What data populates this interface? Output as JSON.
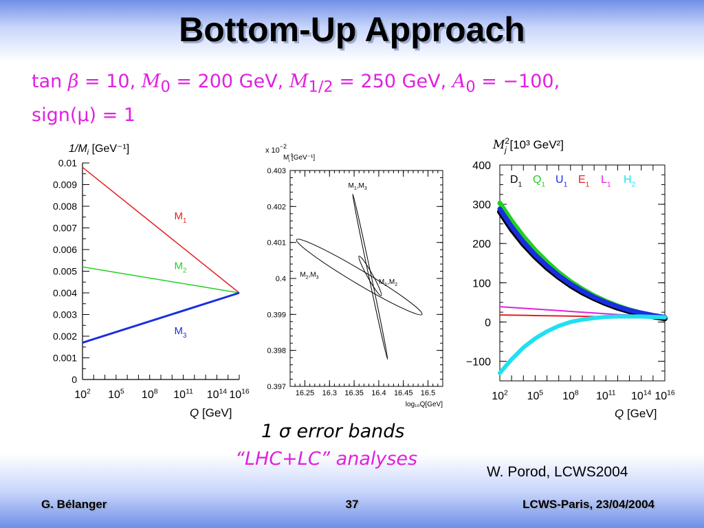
{
  "slide": {
    "title": "Bottom-Up Approach",
    "params": {
      "line1_tan": "tan",
      "line1_beta": "β",
      "line1_tanb": " = 10,",
      "line1_m0sym": "M",
      "line1_m0sub": "0",
      "line1_m0val": " = 200  GeV,",
      "line1_mhsym": "M",
      "line1_mhsub": "1/2",
      "line1_mhval": " = 250  GeV,",
      "line1_a0sym": "A",
      "line1_a0sub": "0",
      "line1_a0val": " = −100,",
      "line2": "sign(μ) = 1"
    },
    "caption_line1": "1 σ  error bands",
    "caption_line2": "“LHC+LC”  analyses",
    "credit": "W. Porod, LCWS2004",
    "footer": {
      "left": "G. Bélanger",
      "center": "37",
      "right": "LCWS-Paris, 23/04/2004"
    }
  },
  "chart_data": [
    {
      "type": "line",
      "ylabel": "1/M",
      "ylabel_sub": "i",
      "ylabel_unit": "[GeV⁻¹]",
      "xlabel": "Q",
      "xlabel_unit": "[GeV]",
      "x_scale": "log",
      "xlim_exp": [
        2,
        16
      ],
      "x_ticks_exp": [
        "2",
        "5",
        "8",
        "11",
        "14",
        "16"
      ],
      "ylim": [
        0,
        0.01
      ],
      "y_ticks": [
        "0.01",
        "0.009",
        "0.008",
        "0.007",
        "0.006",
        "0.005",
        "0.004",
        "0.003",
        "0.002",
        "0.001",
        "0"
      ],
      "series": [
        {
          "name": "M",
          "sub": "1",
          "color": "#e02020",
          "x_exp": [
            2,
            16
          ],
          "y": [
            0.0098,
            0.004
          ],
          "label_x_exp": 10.2,
          "label_y": 0.0074
        },
        {
          "name": "M",
          "sub": "2",
          "color": "#20d020",
          "x_exp": [
            2,
            16
          ],
          "y": [
            0.0052,
            0.004
          ],
          "label_x_exp": 10.2,
          "label_y": 0.0051
        },
        {
          "name": "M",
          "sub": "3",
          "color": "#1a2ee0",
          "x_exp": [
            2,
            16
          ],
          "y": [
            0.0017,
            0.004
          ],
          "label_x_exp": 10.2,
          "label_y": 0.0021
        }
      ]
    },
    {
      "type": "scatter",
      "ylabel": "M",
      "ylabel_sub": "i",
      "ylabel_sup": "-1",
      "ylabel_unit": "[GeV⁻¹]",
      "y_multiplier_base": "x 10",
      "y_multiplier_exp": "−2",
      "xlabel": "log₁₀Q[GeV]",
      "xlim": [
        16.22,
        16.53
      ],
      "x_ticks": [
        "16.25",
        "16.3",
        "16.35",
        "16.4",
        "16.45",
        "16.5"
      ],
      "ylim": [
        0.397,
        0.403
      ],
      "y_ticks": [
        "0.403",
        "0.402",
        "0.401",
        "0.4",
        "0.399",
        "0.398",
        "0.397"
      ],
      "ellipses": [
        {
          "name": "M",
          "a": "1",
          "b": "3",
          "center": [
            16.38,
            0.40025
          ],
          "endpoints": [
            [
              16.347,
              0.40235
            ],
            [
              16.418,
              0.39775
            ]
          ],
          "width": 0.005,
          "label_pos": [
            16.338,
            0.40252
          ]
        },
        {
          "name": "M",
          "a": "2",
          "b": "3",
          "center": [
            16.36,
            0.40005
          ],
          "endpoints": [
            [
              16.233,
              0.40108
            ],
            [
              16.488,
              0.399
            ]
          ],
          "width": 0.028,
          "label_pos": [
            16.24,
            0.40005
          ]
        },
        {
          "name": "M",
          "a": "1",
          "b": "2",
          "center": [
            16.385,
            0.40008
          ],
          "endpoints": [
            [
              16.36,
              0.40062
            ],
            [
              16.405,
              0.39952
            ]
          ],
          "width": 0.011,
          "label_pos": [
            16.4,
            0.39985
          ]
        }
      ]
    },
    {
      "type": "line",
      "ylabel": "M",
      "ylabel_sub": "j",
      "ylabel_sup": "2",
      "ylabel_unit": "[10³  GeV²]",
      "xlabel": "Q",
      "xlabel_unit": "[GeV]",
      "x_scale": "log",
      "xlim_exp": [
        2,
        16
      ],
      "x_ticks_exp": [
        "2",
        "5",
        "8",
        "11",
        "14",
        "16"
      ],
      "ylim": [
        -150,
        400
      ],
      "y_ticks": [
        "400",
        "300",
        "200",
        "100",
        "0",
        "−100"
      ],
      "legend": [
        {
          "name": "D",
          "sub": "1",
          "color": "#000000"
        },
        {
          "name": "Q",
          "sub": "1",
          "color": "#20d020"
        },
        {
          "name": "U",
          "sub": "1",
          "color": "#1a2ee0"
        },
        {
          "name": "E",
          "sub": "1",
          "color": "#e02020"
        },
        {
          "name": "L",
          "sub": "1",
          "color": "#e020e0"
        },
        {
          "name": "H",
          "sub": "2",
          "color": "#20e0f0"
        }
      ],
      "x_exp": [
        2,
        3,
        4,
        5,
        6,
        7,
        8,
        9,
        10,
        11,
        12,
        13,
        14,
        15,
        16
      ],
      "series": [
        {
          "name": "Q1",
          "color": "#20d020",
          "width": 7,
          "y": [
            303,
            258,
            218,
            183,
            153,
            126,
            103,
            84,
            67,
            53,
            41,
            31,
            23,
            17,
            12
          ]
        },
        {
          "name": "D1",
          "color": "#000000",
          "width": 8,
          "y": [
            281,
            236,
            198,
            166,
            138,
            114,
            93,
            75,
            60,
            47,
            36,
            27,
            20,
            14,
            9
          ]
        },
        {
          "name": "U1",
          "color": "#1a2ee0",
          "width": 7,
          "y": [
            288,
            243,
            204,
            171,
            143,
            118,
            97,
            79,
            63,
            50,
            39,
            30,
            23,
            17,
            12
          ]
        },
        {
          "name": "L1",
          "color": "#e020e0",
          "width": 2,
          "y": [
            39,
            37,
            35,
            33,
            31,
            29,
            27,
            25,
            23,
            21,
            19,
            18,
            16,
            15,
            14
          ]
        },
        {
          "name": "E1",
          "color": "#e02020",
          "width": 2,
          "y": [
            18,
            17.5,
            17,
            16.5,
            16,
            15.5,
            15,
            14.5,
            14,
            13.5,
            13,
            12.5,
            12,
            11.5,
            11
          ]
        },
        {
          "name": "H2",
          "color": "#20e0f0",
          "width": 6,
          "y": [
            -130,
            -95,
            -65,
            -42,
            -24,
            -10,
            0,
            6,
            10,
            13,
            14,
            14,
            14,
            13,
            12
          ]
        }
      ]
    }
  ]
}
